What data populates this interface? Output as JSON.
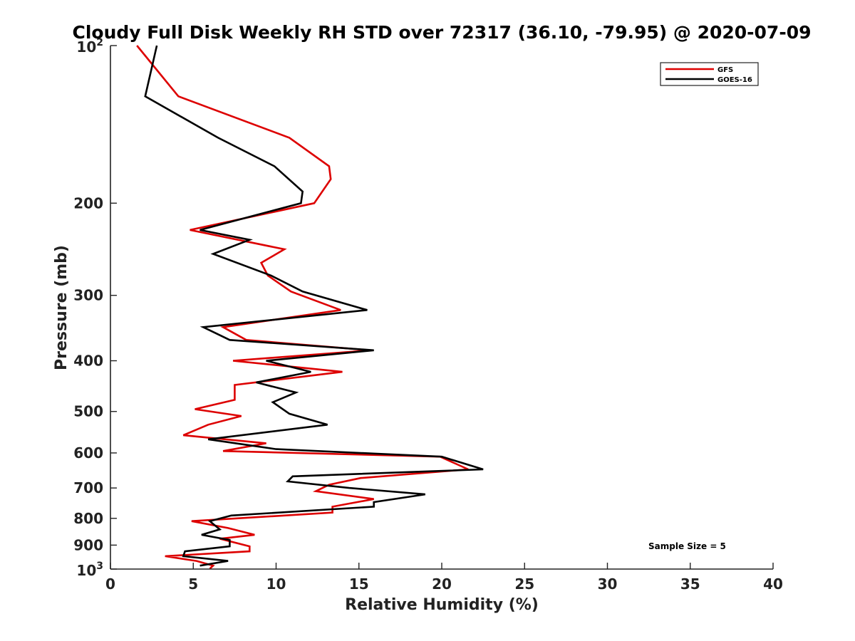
{
  "chart_data": {
    "type": "line",
    "title": "Cloudy Full Disk Weekly RH STD over 72317 (36.10, -79.95) @ 2020-07-09",
    "xlabel": "Relative Humidity (%)",
    "ylabel": "Pressure (mb)",
    "xlim": [
      0,
      40
    ],
    "ylim": [
      100,
      1000
    ],
    "yscale": "log",
    "yreversed": true,
    "x_ticks": [
      "0",
      "5",
      "10",
      "15",
      "20",
      "25",
      "30",
      "35",
      "40"
    ],
    "y_ticks": [
      {
        "value": 100,
        "base": "10",
        "exp": "2"
      },
      {
        "value": 200,
        "label": "200"
      },
      {
        "value": 300,
        "label": "300"
      },
      {
        "value": 400,
        "label": "400"
      },
      {
        "value": 500,
        "label": "500"
      },
      {
        "value": 600,
        "label": "600"
      },
      {
        "value": 700,
        "label": "700"
      },
      {
        "value": 800,
        "label": "800"
      },
      {
        "value": 900,
        "label": "900"
      },
      {
        "value": 1000,
        "base": "10",
        "exp": "3"
      }
    ],
    "grid": false,
    "legend_position": "top-right",
    "annotation": "Sample Size = 5",
    "series": [
      {
        "name": "GFS",
        "color": "#dd0000",
        "points": [
          [
            1.6,
            100
          ],
          [
            4.1,
            125
          ],
          [
            10.8,
            150
          ],
          [
            13.2,
            170
          ],
          [
            13.3,
            180
          ],
          [
            12.3,
            200
          ],
          [
            4.8,
            225
          ],
          [
            10.5,
            245
          ],
          [
            9.1,
            260
          ],
          [
            9.5,
            275
          ],
          [
            10.9,
            295
          ],
          [
            13.9,
            320
          ],
          [
            6.8,
            345
          ],
          [
            8.2,
            365
          ],
          [
            15.7,
            382
          ],
          [
            7.4,
            400
          ],
          [
            14.0,
            420
          ],
          [
            7.5,
            445
          ],
          [
            7.5,
            475
          ],
          [
            5.1,
            495
          ],
          [
            7.9,
            510
          ],
          [
            5.9,
            530
          ],
          [
            4.4,
            555
          ],
          [
            9.4,
            575
          ],
          [
            6.8,
            595
          ],
          [
            19.9,
            610
          ],
          [
            21.6,
            645
          ],
          [
            15.1,
            670
          ],
          [
            13.2,
            690
          ],
          [
            12.4,
            710
          ],
          [
            15.9,
            735
          ],
          [
            13.4,
            760
          ],
          [
            13.4,
            780
          ],
          [
            4.9,
            810
          ],
          [
            7.1,
            835
          ],
          [
            8.7,
            860
          ],
          [
            6.6,
            875
          ],
          [
            8.4,
            905
          ],
          [
            8.4,
            925
          ],
          [
            3.3,
            945
          ],
          [
            5.2,
            965
          ],
          [
            6.2,
            985
          ],
          [
            6.0,
            998
          ]
        ]
      },
      {
        "name": "GOES-16",
        "color": "#000000",
        "points": [
          [
            2.8,
            100
          ],
          [
            2.1,
            125
          ],
          [
            6.5,
            150
          ],
          [
            9.9,
            170
          ],
          [
            11.6,
            190
          ],
          [
            11.5,
            200
          ],
          [
            5.4,
            225
          ],
          [
            8.4,
            235
          ],
          [
            6.2,
            250
          ],
          [
            9.7,
            275
          ],
          [
            11.6,
            295
          ],
          [
            15.5,
            320
          ],
          [
            5.6,
            345
          ],
          [
            7.2,
            365
          ],
          [
            15.9,
            382
          ],
          [
            9.4,
            400
          ],
          [
            12.1,
            420
          ],
          [
            8.8,
            440
          ],
          [
            11.2,
            460
          ],
          [
            9.8,
            480
          ],
          [
            10.8,
            505
          ],
          [
            13.1,
            530
          ],
          [
            5.9,
            565
          ],
          [
            10.0,
            590
          ],
          [
            20.0,
            610
          ],
          [
            22.5,
            645
          ],
          [
            11.0,
            665
          ],
          [
            10.7,
            680
          ],
          [
            14.4,
            700
          ],
          [
            19.0,
            720
          ],
          [
            15.9,
            745
          ],
          [
            15.9,
            760
          ],
          [
            7.3,
            790
          ],
          [
            6.0,
            810
          ],
          [
            6.6,
            840
          ],
          [
            5.5,
            860
          ],
          [
            7.2,
            880
          ],
          [
            7.2,
            905
          ],
          [
            4.5,
            925
          ],
          [
            4.4,
            945
          ],
          [
            7.1,
            965
          ],
          [
            5.4,
            985
          ]
        ]
      }
    ]
  }
}
